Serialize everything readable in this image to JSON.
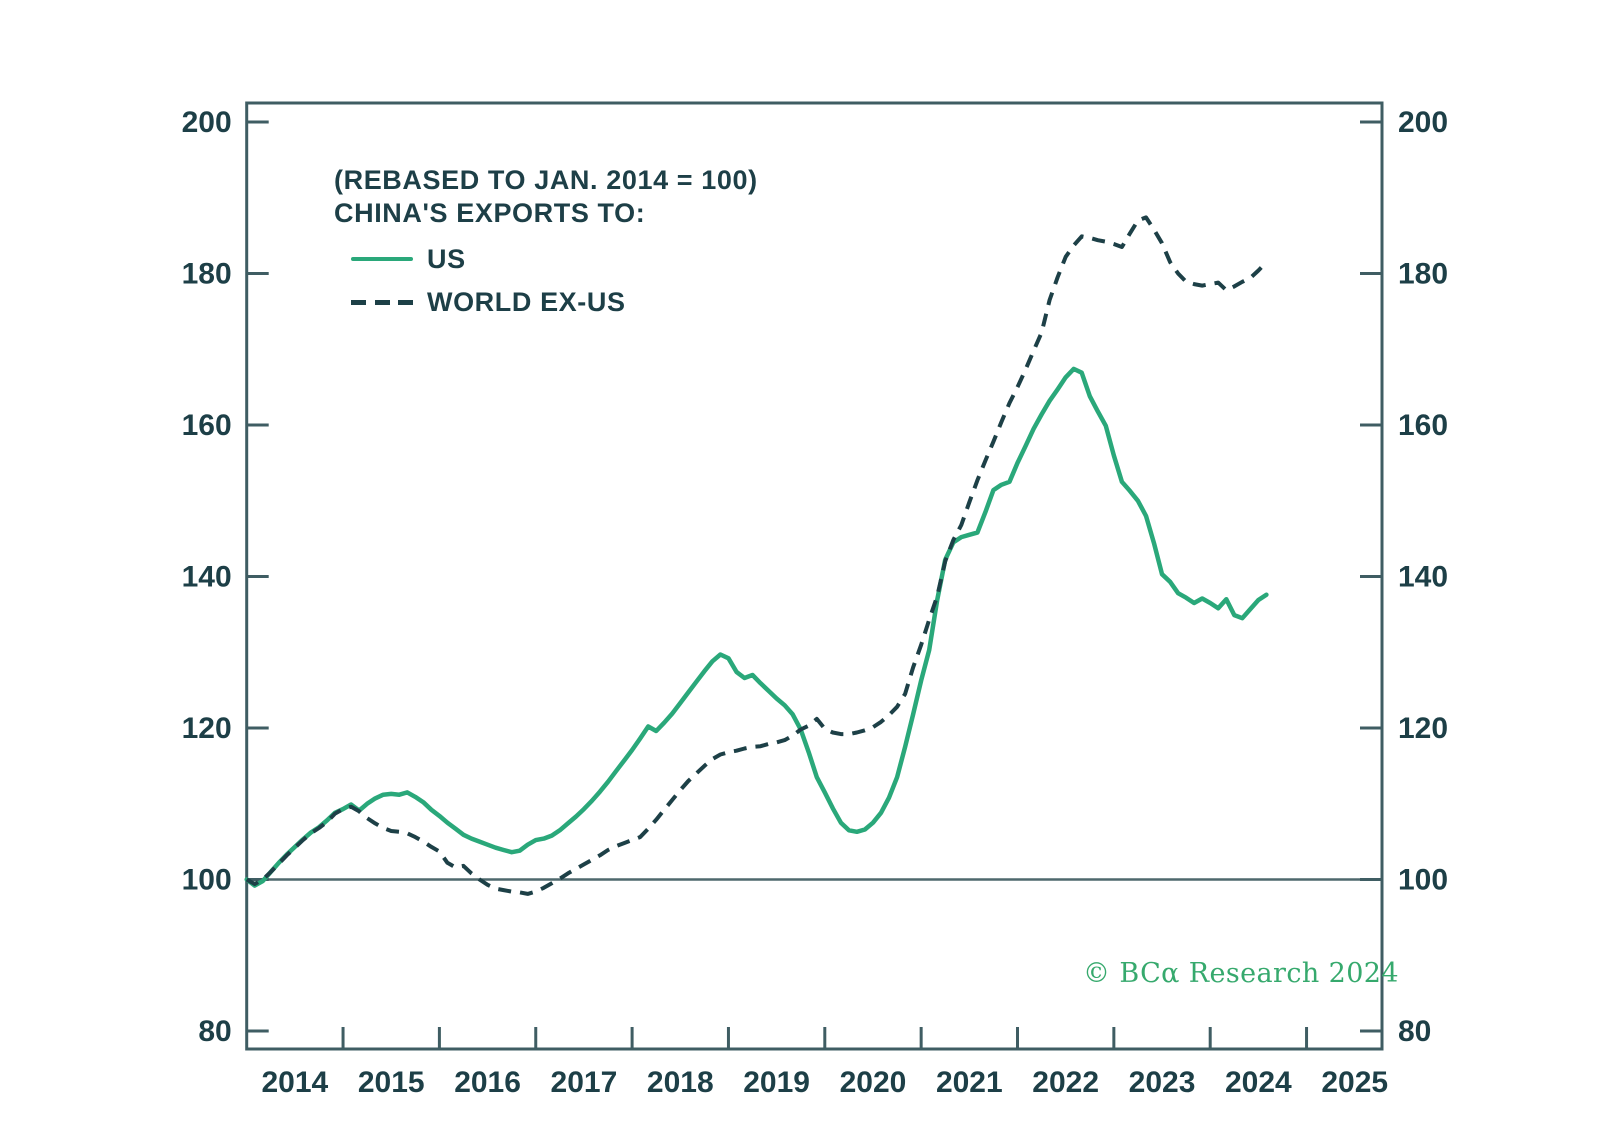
{
  "legend": {
    "note": "(REBASED TO JAN. 2014 = 100)",
    "title": "CHINA'S EXPORTS TO:",
    "items": [
      {
        "label": "US",
        "style": "solid",
        "color": "#2aa87a"
      },
      {
        "label": "WORLD EX-US",
        "style": "dashed",
        "color": "#1d4047"
      }
    ]
  },
  "watermark": {
    "text": "© BCα Research 2024",
    "color": "#36a96d"
  },
  "colors": {
    "axis": "#3f5d63",
    "tick_label": "#1d3f47",
    "reference_line": "#4e686d",
    "us_line": "#2aa87a",
    "world_line": "#1d4047",
    "background": "#ffffff"
  },
  "chart_data": {
    "type": "line",
    "title": "CHINA'S EXPORTS TO:",
    "subtitle": "(REBASED TO JAN. 2014 = 100)",
    "x_start": "2014-01",
    "x_freq": "monthly",
    "x_axis": {
      "year_labels": [
        "2014",
        "2015",
        "2016",
        "2017",
        "2018",
        "2019",
        "2020",
        "2021",
        "2022",
        "2023",
        "2024",
        "2025"
      ],
      "tick_years": [
        2015,
        2016,
        2017,
        2018,
        2019,
        2020,
        2021,
        2022,
        2023,
        2024,
        2025
      ]
    },
    "y_axis": {
      "ticks": [
        80,
        100,
        120,
        140,
        160,
        180,
        200
      ],
      "min": 80,
      "max": 200,
      "reference_line": 100,
      "sides": "both",
      "grid": false
    },
    "legend_position": "top-left-inside",
    "series": [
      {
        "name": "US",
        "style": "solid",
        "values": [
          100,
          99.2,
          99.8,
          101,
          102.2,
          103.3,
          104.3,
          105.3,
          106.2,
          106.9,
          107.8,
          108.8,
          109.3,
          109.9,
          109.1,
          110,
          110.7,
          111.2,
          111.3,
          111.2,
          111.5,
          110.9,
          110.2,
          109.2,
          108.4,
          107.5,
          106.7,
          105.9,
          105.4,
          105,
          104.6,
          104.2,
          103.9,
          103.6,
          103.8,
          104.6,
          105.2,
          105.4,
          105.8,
          106.5,
          107.4,
          108.3,
          109.3,
          110.4,
          111.6,
          112.9,
          114.3,
          115.7,
          117.1,
          118.6,
          120.2,
          119.6,
          120.7,
          121.9,
          123.3,
          124.7,
          126.1,
          127.5,
          128.8,
          129.7,
          129.2,
          127.4,
          126.6,
          127,
          125.9,
          124.9,
          123.9,
          123,
          121.8,
          119.8,
          116.8,
          113.5,
          111.5,
          109.4,
          107.5,
          106.5,
          106.3,
          106.6,
          107.5,
          108.8,
          110.8,
          113.5,
          117.5,
          121.8,
          126.3,
          130.3,
          136.9,
          142.2,
          144.5,
          145.2,
          145.5,
          145.8,
          148.5,
          151.4,
          152.1,
          152.5,
          155,
          157.2,
          159.5,
          161.4,
          163.2,
          164.7,
          166.3,
          167.4,
          166.9,
          163.8,
          161.8,
          159.9,
          156,
          152.5,
          151.3,
          150,
          148,
          144.4,
          140.3,
          139.3,
          137.8,
          137.2,
          136.5,
          137.1,
          136.5,
          135.8,
          137,
          134.9,
          134.5,
          135.7,
          136.9,
          137.6
        ]
      },
      {
        "name": "WORLD EX-US",
        "style": "dashed",
        "values": [
          100,
          99.4,
          100,
          101,
          102.1,
          103.2,
          104.2,
          105.2,
          106.1,
          106.8,
          107.6,
          108.7,
          109.3,
          109.6,
          109,
          108.1,
          107.4,
          106.8,
          106.4,
          106.3,
          106.1,
          105.6,
          105,
          104.3,
          103.7,
          102.2,
          101.6,
          101.8,
          100.8,
          100,
          99.3,
          98.8,
          98.6,
          98.4,
          98.3,
          98.1,
          98.4,
          98.9,
          99.5,
          100.1,
          100.8,
          101.4,
          102,
          102.6,
          103.2,
          103.9,
          104.4,
          104.8,
          105.2,
          105.6,
          106.7,
          107.9,
          109.2,
          110.5,
          111.8,
          113,
          114,
          115,
          115.9,
          116.5,
          116.8,
          117,
          117.3,
          117.5,
          117.6,
          117.9,
          118.1,
          118.4,
          119,
          119.8,
          120.3,
          121.2,
          119.9,
          119.4,
          119.2,
          119.2,
          119.4,
          119.7,
          120.1,
          120.8,
          121.7,
          122.8,
          124.5,
          128,
          131,
          134.3,
          137.4,
          142,
          144.8,
          146.8,
          149.8,
          152.7,
          155.3,
          157.8,
          160.4,
          162.9,
          165,
          167.3,
          169.8,
          172.2,
          176.5,
          179.5,
          182.2,
          183.7,
          184.9,
          184.7,
          184.4,
          184.2,
          183.9,
          183.5,
          185.3,
          187,
          187.4,
          185.8,
          184,
          181.5,
          180,
          178.9,
          178.6,
          178.4,
          178.6,
          178.8,
          177.8,
          178.3,
          178.9,
          179.4,
          180.4,
          181.5
        ]
      }
    ]
  }
}
